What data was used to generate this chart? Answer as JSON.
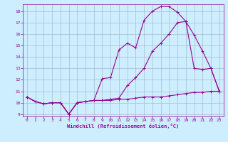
{
  "xlabel": "Windchill (Refroidissement éolien,°C)",
  "background_color": "#cceeff",
  "grid_color": "#aabbcc",
  "line_color": "#990099",
  "xlim": [
    -0.5,
    23.5
  ],
  "ylim": [
    8.8,
    18.6
  ],
  "yticks": [
    9,
    10,
    11,
    12,
    13,
    14,
    15,
    16,
    17,
    18
  ],
  "xticks": [
    0,
    1,
    2,
    3,
    4,
    5,
    6,
    7,
    8,
    9,
    10,
    11,
    12,
    13,
    14,
    15,
    16,
    17,
    18,
    19,
    20,
    21,
    22,
    23
  ],
  "line1_x": [
    0,
    1,
    2,
    3,
    4,
    5,
    6,
    7,
    8,
    9,
    10,
    11,
    12,
    13,
    14,
    15,
    16,
    17,
    18,
    19,
    20,
    21,
    22,
    23
  ],
  "line1_y": [
    10.5,
    10.1,
    9.9,
    10.0,
    10.0,
    9.0,
    10.0,
    10.1,
    10.2,
    12.1,
    12.2,
    14.6,
    15.2,
    14.8,
    17.2,
    18.0,
    18.4,
    18.4,
    17.9,
    17.1,
    13.0,
    12.9,
    13.0,
    11.0
  ],
  "line2_x": [
    0,
    1,
    2,
    3,
    4,
    5,
    6,
    7,
    8,
    9,
    10,
    11,
    12,
    13,
    14,
    15,
    16,
    17,
    18,
    19,
    20,
    21,
    22,
    23
  ],
  "line2_y": [
    10.5,
    10.1,
    9.9,
    10.0,
    10.0,
    9.0,
    10.0,
    10.1,
    10.2,
    10.2,
    10.3,
    10.4,
    11.5,
    12.2,
    13.0,
    14.5,
    15.2,
    16.0,
    17.0,
    17.1,
    15.9,
    14.5,
    13.0,
    11.0
  ],
  "line3_x": [
    0,
    1,
    2,
    3,
    4,
    5,
    6,
    7,
    8,
    9,
    10,
    11,
    12,
    13,
    14,
    15,
    16,
    17,
    18,
    19,
    20,
    21,
    22,
    23
  ],
  "line3_y": [
    10.5,
    10.1,
    9.9,
    10.0,
    10.0,
    9.0,
    10.0,
    10.1,
    10.2,
    10.2,
    10.2,
    10.3,
    10.3,
    10.4,
    10.5,
    10.5,
    10.5,
    10.6,
    10.7,
    10.8,
    10.9,
    10.9,
    11.0,
    11.0
  ]
}
